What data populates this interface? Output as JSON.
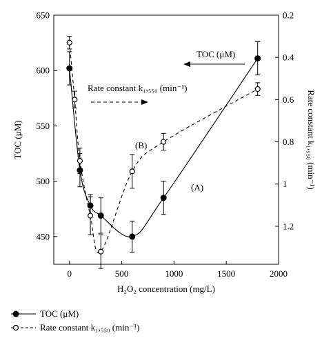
{
  "chart_data": {
    "type": "line",
    "x": {
      "label": "H₂O₂ concentration (mg/L)",
      "lim": [
        -150,
        2000
      ],
      "ticks": [
        "0",
        "500",
        "1000",
        "1500",
        "2000"
      ],
      "tick_values": [
        0,
        500,
        1000,
        1500,
        2000
      ]
    },
    "y_left": {
      "label": "TOC (μM)",
      "lim": [
        425,
        650
      ],
      "ticks": [
        "450",
        "500",
        "550",
        "600",
        "650"
      ],
      "tick_values": [
        450,
        500,
        550,
        600,
        650
      ]
    },
    "y_right": {
      "label": "Rate constant k₁,₅₅₀ (min⁻¹)",
      "lim": [
        1.38,
        0.2
      ],
      "inverted": true,
      "ticks": [
        "0.2",
        "0.4",
        "0.6",
        "0.8",
        "1",
        "1.2"
      ],
      "tick_values": [
        0.2,
        0.4,
        0.6,
        0.8,
        1.0,
        1.2
      ]
    },
    "series": [
      {
        "name": "TOC (μM)",
        "axis": "left",
        "marker": "filled-circle",
        "line": "solid",
        "color": "#000000",
        "x": [
          0,
          100,
          200,
          300,
          600,
          900,
          1800
        ],
        "y": [
          602,
          510,
          478,
          469,
          450,
          485,
          611
        ],
        "err": [
          15,
          15,
          10,
          16,
          14,
          15,
          15
        ]
      },
      {
        "name": "Rate constant k₁,₅₅₀ (min⁻¹)",
        "axis": "right",
        "marker": "open-circle",
        "line": "dashed",
        "color": "#000000",
        "x": [
          0,
          50,
          100,
          200,
          300,
          600,
          900,
          1800
        ],
        "y": [
          0.33,
          0.6,
          0.89,
          1.15,
          1.32,
          0.94,
          0.8,
          0.55
        ],
        "err": [
          0.03,
          0.04,
          0.06,
          0.09,
          0.08,
          0.08,
          0.04,
          0.03
        ]
      }
    ],
    "annotations": {
      "curve_a": "(A)",
      "curve_b": "(B)",
      "toc_arrow_label": "TOC (μM)",
      "rate_arrow_label": "Rate constant k₁,₅₅₀ (min⁻¹)"
    },
    "legend": {
      "placement": "bottom-left",
      "items": [
        "TOC (μM)",
        "Rate constant k₁,₅₅₀ (min⁻¹)"
      ]
    },
    "grid": false
  }
}
